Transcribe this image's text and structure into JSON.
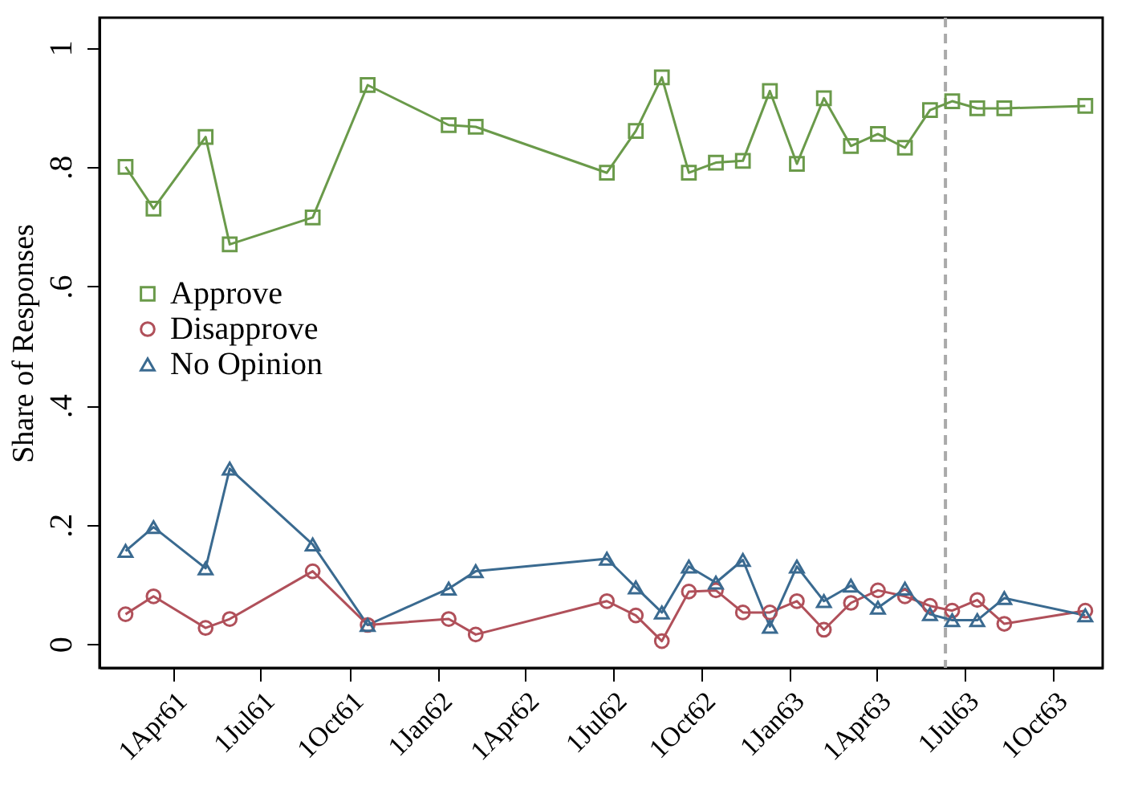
{
  "chart_data": {
    "type": "line",
    "ylabel": "Share of Responses",
    "x": [
      "1961-02-11",
      "1961-03-12",
      "1961-05-05",
      "1961-05-30",
      "1961-08-24",
      "1961-10-20",
      "1962-01-12",
      "1962-02-09",
      "1962-06-25",
      "1962-07-25",
      "1962-08-21",
      "1962-09-18",
      "1962-10-16",
      "1962-11-13",
      "1962-12-11",
      "1963-01-08",
      "1963-02-05",
      "1963-03-05",
      "1963-04-02",
      "1963-04-30",
      "1963-05-26",
      "1963-06-18",
      "1963-07-14",
      "1963-08-11",
      "1963-11-03"
    ],
    "series": [
      {
        "name": "Approve",
        "color": "#6a9a4a",
        "marker": "square",
        "values": [
          0.8,
          0.73,
          0.85,
          0.67,
          0.715,
          0.937,
          0.87,
          0.867,
          0.79,
          0.86,
          0.95,
          0.79,
          0.807,
          0.81,
          0.927,
          0.805,
          0.915,
          0.835,
          0.855,
          0.832,
          0.895,
          0.91,
          0.898,
          0.898,
          0.902
        ]
      },
      {
        "name": "Disapprove",
        "color": "#b0505a",
        "marker": "circle",
        "values": [
          0.05,
          0.08,
          0.027,
          0.042,
          0.122,
          0.032,
          0.042,
          0.016,
          0.072,
          0.048,
          0.005,
          0.088,
          0.09,
          0.053,
          0.053,
          0.072,
          0.024,
          0.069,
          0.09,
          0.08,
          0.064,
          0.056,
          0.074,
          0.034,
          0.056
        ]
      },
      {
        "name": "No Opinion",
        "color": "#3a6a90",
        "marker": "triangle",
        "values": [
          0.156,
          0.196,
          0.127,
          0.294,
          0.167,
          0.032,
          0.093,
          0.122,
          0.143,
          0.095,
          0.053,
          0.13,
          0.103,
          0.141,
          0.029,
          0.13,
          0.072,
          0.098,
          0.061,
          0.093,
          0.05,
          0.04,
          0.04,
          0.077,
          0.048
        ]
      }
    ],
    "xlim": [
      "1961-01-15",
      "1963-11-21"
    ],
    "xticks": [
      {
        "value": "1961-04-01",
        "label": "1Apr61"
      },
      {
        "value": "1961-07-01",
        "label": "1Jul61"
      },
      {
        "value": "1961-10-01",
        "label": "1Oct61"
      },
      {
        "value": "1962-01-01",
        "label": "1Jan62"
      },
      {
        "value": "1962-04-01",
        "label": "1Apr62"
      },
      {
        "value": "1962-07-01",
        "label": "1Jul62"
      },
      {
        "value": "1962-10-01",
        "label": "1Oct62"
      },
      {
        "value": "1963-01-01",
        "label": "1Jan63"
      },
      {
        "value": "1963-04-01",
        "label": "1Apr63"
      },
      {
        "value": "1963-07-01",
        "label": "1Jul63"
      },
      {
        "value": "1963-10-01",
        "label": "1Oct63"
      }
    ],
    "ylim": [
      -0.04,
      1.05
    ],
    "yticks": [
      {
        "value": 0,
        "label": "0"
      },
      {
        "value": 0.2,
        "label": ".2"
      },
      {
        "value": 0.4,
        "label": ".4"
      },
      {
        "value": 0.6,
        "label": ".6"
      },
      {
        "value": 0.8,
        "label": ".8"
      },
      {
        "value": 1,
        "label": "1"
      }
    ],
    "ref_lines": [
      {
        "axis": "x",
        "value": "1963-06-11",
        "color": "#aaaaaa",
        "line_style": "dashed"
      }
    ],
    "legend": "left",
    "grid": false,
    "line_style": "solid"
  }
}
